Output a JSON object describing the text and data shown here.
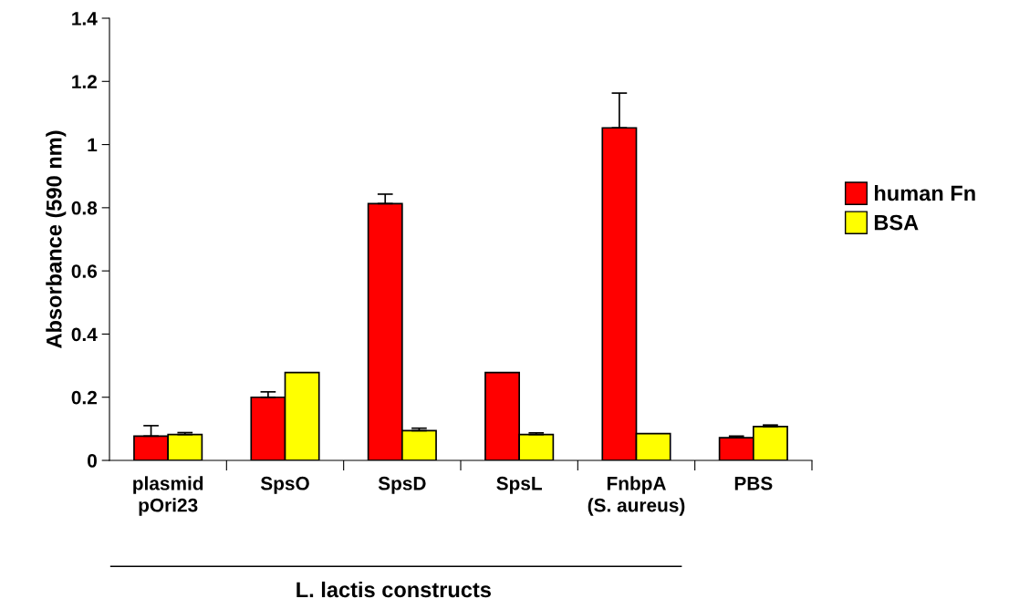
{
  "chart_data": {
    "type": "bar",
    "ylabel": "Absorbance (590 nm)",
    "categories": [
      "plasmid\npOri23",
      "SpsO",
      "SpsD",
      "SpsL",
      "FnbpA\n(S. aureus)",
      "PBS"
    ],
    "series": [
      {
        "name": "human Fn",
        "color": "#ff0000",
        "values": [
          0.077,
          0.2,
          0.813,
          0.278,
          1.053,
          0.072
        ],
        "errors": [
          0.033,
          0.017,
          0.03,
          null,
          0.11,
          0.005
        ]
      },
      {
        "name": "BSA",
        "color": "#ffff00",
        "values": [
          0.082,
          0.278,
          0.094,
          0.082,
          0.085,
          0.107
        ],
        "errors": [
          0.006,
          null,
          0.008,
          0.005,
          null,
          0.005
        ]
      }
    ],
    "ylim": [
      0,
      1.4
    ],
    "yticks": [
      0,
      0.2,
      0.4,
      0.6,
      0.8,
      1,
      1.2,
      1.4
    ],
    "grid": false,
    "legend": "right",
    "annotations": [
      "L. lactis constructs"
    ]
  }
}
